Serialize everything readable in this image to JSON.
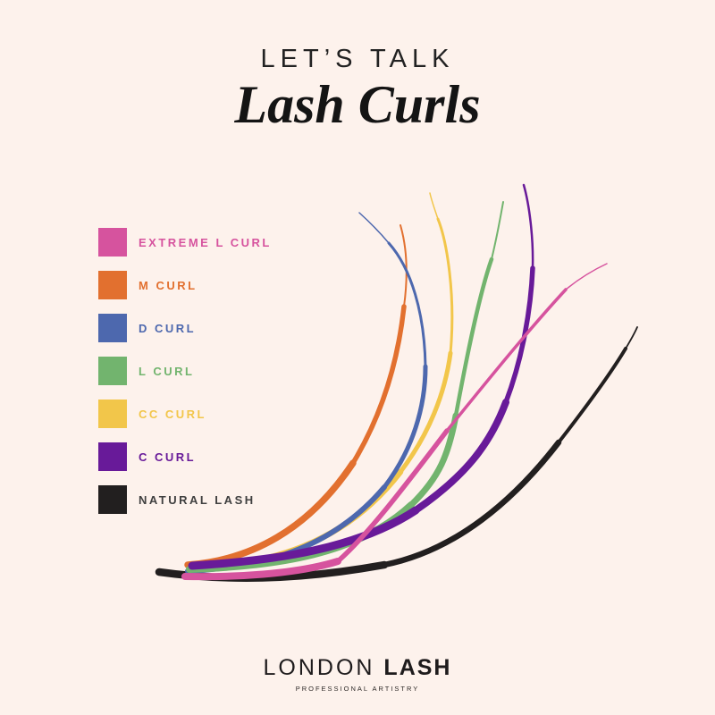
{
  "page": {
    "background": "#fdf2ec"
  },
  "header": {
    "eyebrow": "LET’S TALK",
    "title": "Lash Curls"
  },
  "legend": [
    {
      "id": "extreme-l",
      "label": "EXTREME L CURL",
      "color": "#d6539e",
      "text_color": "#d6539e"
    },
    {
      "id": "m",
      "label": "M CURL",
      "color": "#e2702f",
      "text_color": "#e2702f"
    },
    {
      "id": "d",
      "label": "D CURL",
      "color": "#4d68ae",
      "text_color": "#4d68ae"
    },
    {
      "id": "l",
      "label": "L CURL",
      "color": "#72b46e",
      "text_color": "#72b46e"
    },
    {
      "id": "cc",
      "label": "CC CURL",
      "color": "#f2c64a",
      "text_color": "#f2c64a"
    },
    {
      "id": "c",
      "label": "C CURL",
      "color": "#681a99",
      "text_color": "#681a99"
    },
    {
      "id": "natural",
      "label": "NATURAL LASH",
      "color": "#221f1f",
      "text_color": "#3f3f3f"
    }
  ],
  "footer": {
    "brand_light": "LONDON",
    "brand_bold": "LASH",
    "tagline": "PROFESSIONAL ARTISTRY"
  }
}
